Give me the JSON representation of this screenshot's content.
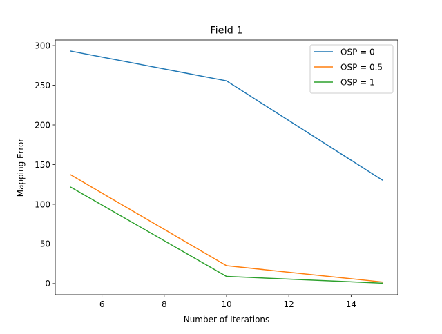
{
  "chart_data": {
    "type": "line",
    "title": "Field 1",
    "xlabel": "Number of Iterations",
    "ylabel": "Mapping Error",
    "x": [
      5,
      10,
      15
    ],
    "xlim": [
      4.5,
      15.5
    ],
    "ylim": [
      -14,
      307
    ],
    "xticks": [
      6,
      8,
      10,
      12,
      14
    ],
    "yticks": [
      0,
      50,
      100,
      150,
      200,
      250,
      300
    ],
    "grid": false,
    "legend_position": "upper right",
    "series": [
      {
        "name": "OSP = 0",
        "color": "#1f77b4",
        "values": [
          293,
          255.5,
          130.5
        ]
      },
      {
        "name": "OSP = 0.5",
        "color": "#ff7f0e",
        "values": [
          137,
          22.5,
          2
        ]
      },
      {
        "name": "OSP = 1",
        "color": "#2ca02c",
        "values": [
          121.5,
          9,
          0.5
        ]
      }
    ]
  }
}
